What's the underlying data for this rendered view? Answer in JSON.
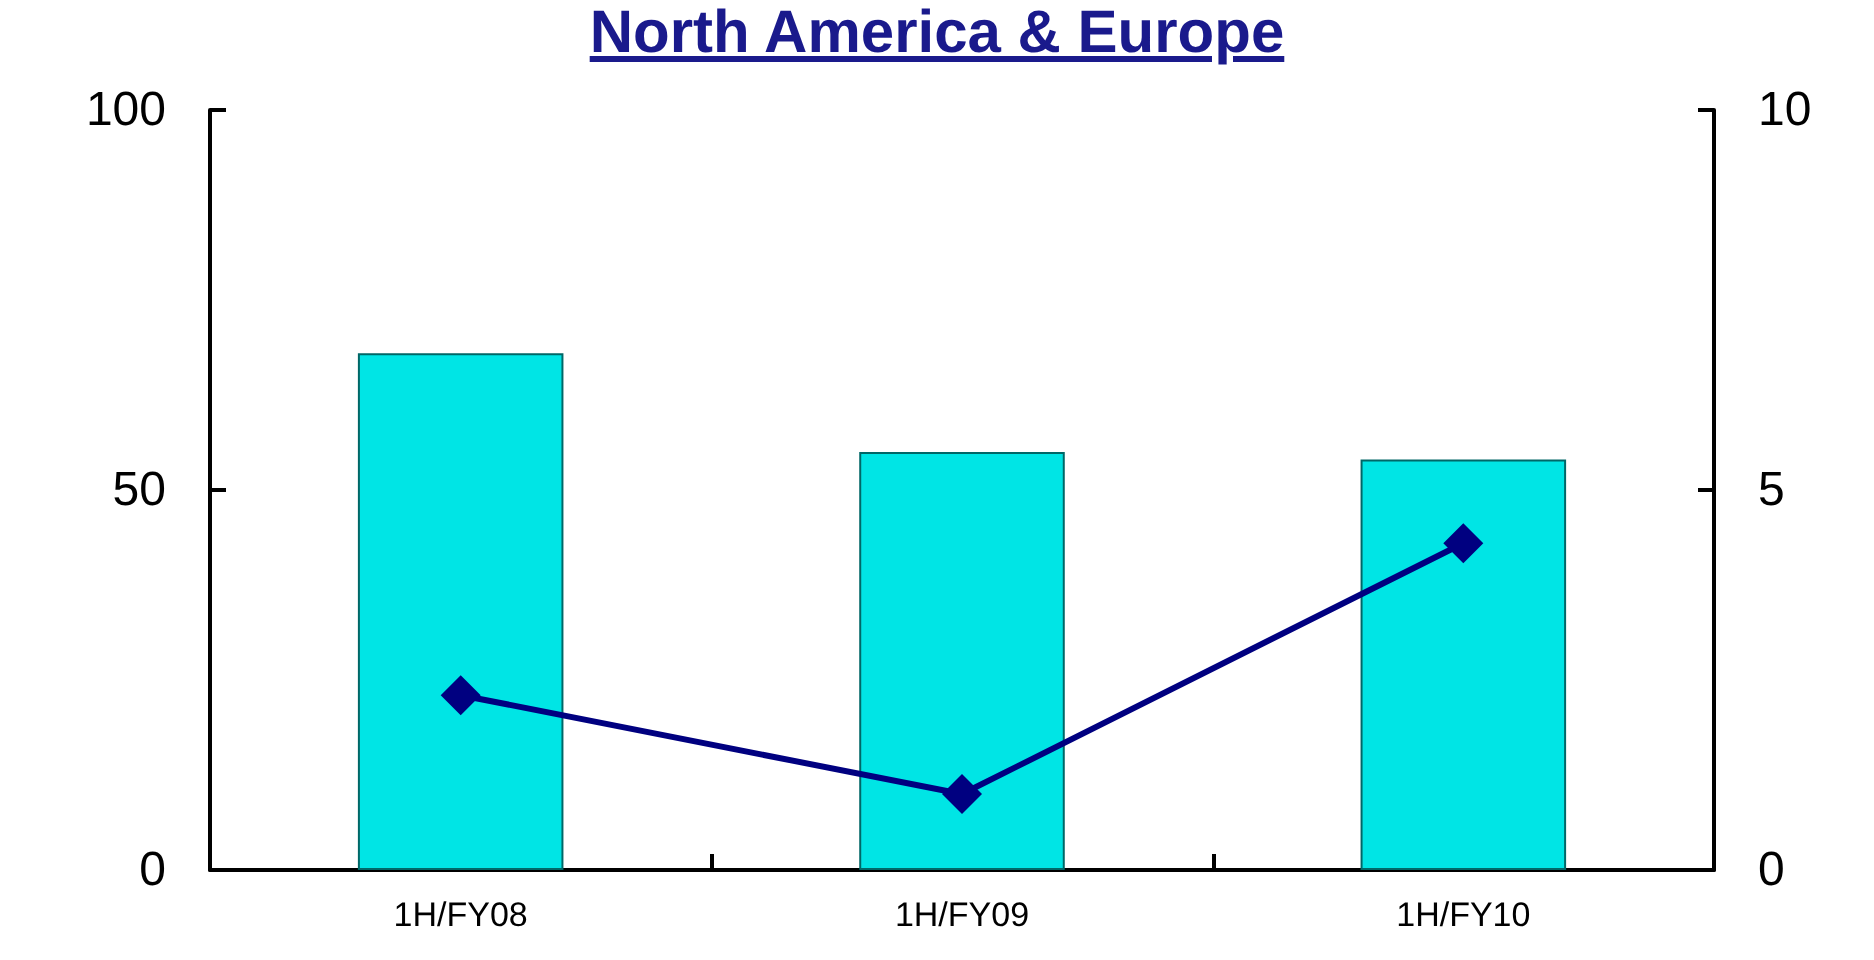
{
  "chart_data": {
    "type": "bar",
    "title": "North America & Europe",
    "categories": [
      "1H/FY08",
      "1H/FY09",
      "1H/FY10"
    ],
    "series": [
      {
        "color": "#00e5e5",
        "values": [
          68,
          55,
          54
        ]
      },
      {
        "type": "line",
        "axis": "y2",
        "color": "#000080",
        "values": [
          2.3,
          1.0,
          4.3
        ],
        "marker": "diamond",
        "line_style": "solid"
      }
    ],
    "ylim": [
      0,
      100
    ],
    "yticks": [
      0,
      50,
      100
    ],
    "y2lim": [
      0,
      10
    ],
    "y2ticks": [
      0,
      5,
      10
    ],
    "grid": false
  }
}
